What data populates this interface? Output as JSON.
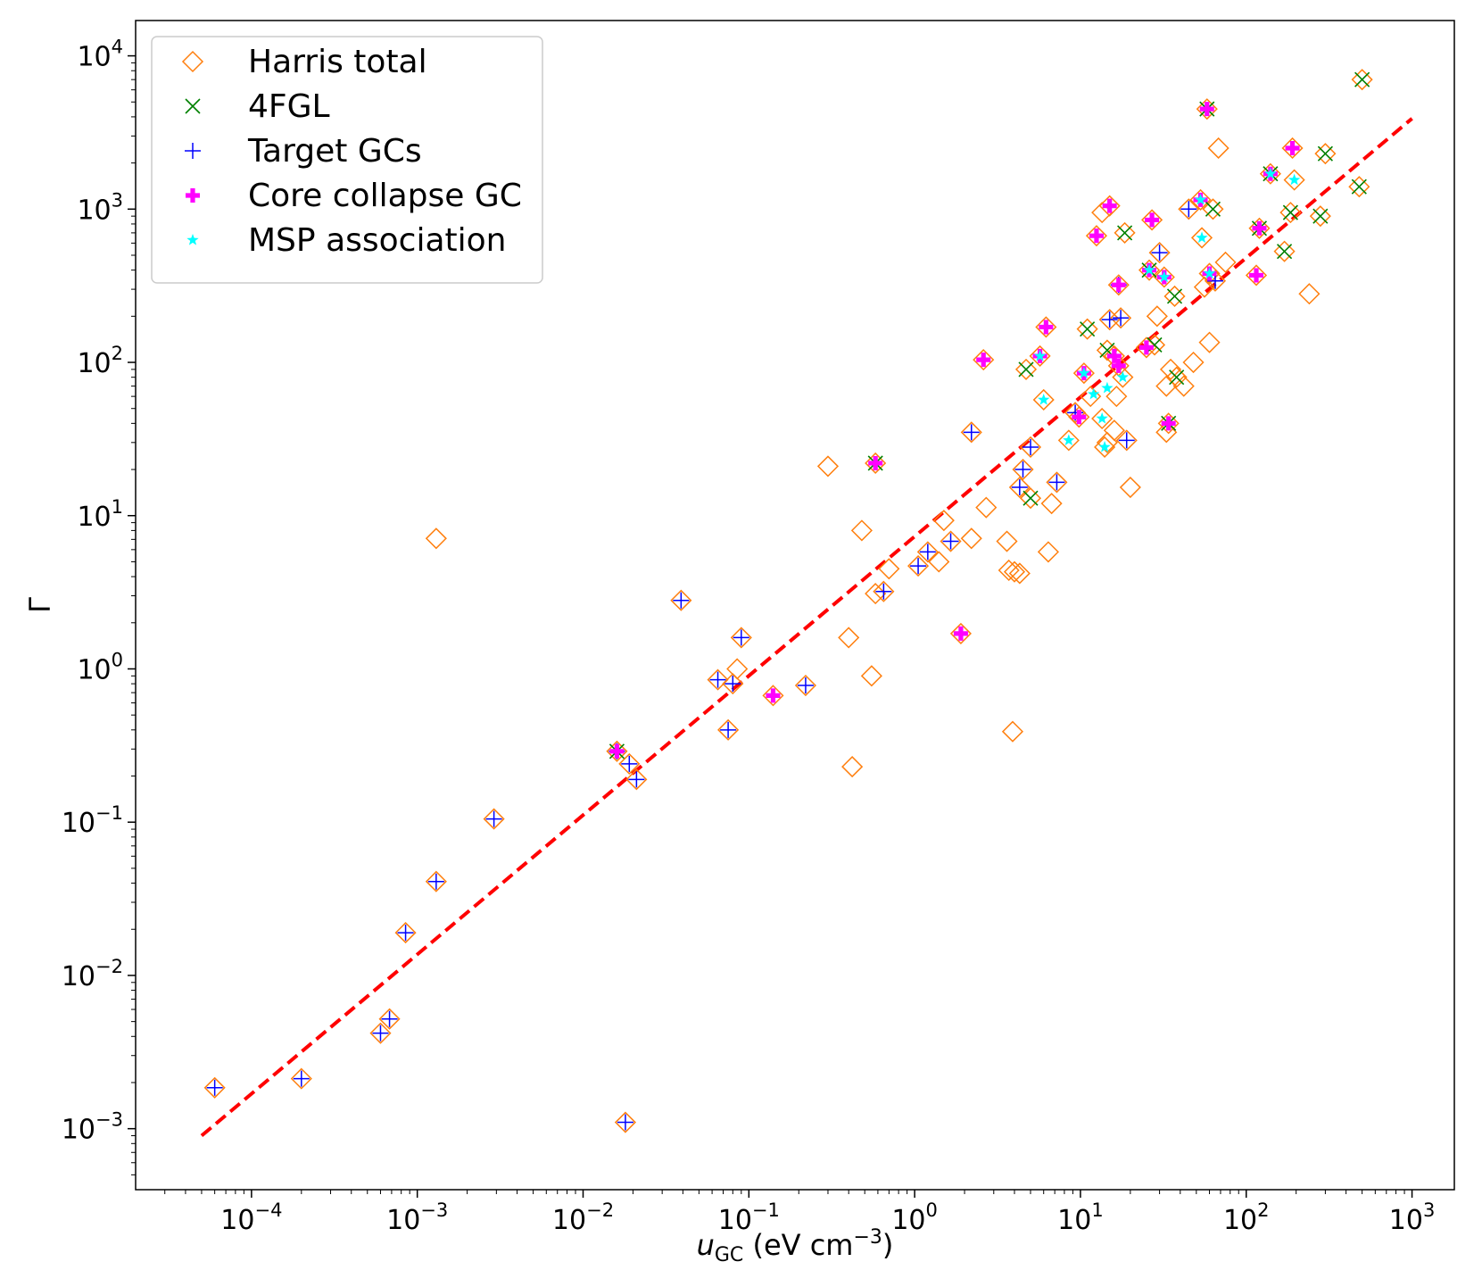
{
  "chart_data": {
    "type": "scatter",
    "title": "",
    "xlabel": "u_GC (eV cm^-3)",
    "xlabel_parts": {
      "sym": "u",
      "sub": "GC",
      "unit_open": " (eV cm",
      "unit_sup": "−3",
      "unit_close": ")"
    },
    "ylabel": "Γ",
    "xscale": "log",
    "yscale": "log",
    "xlim": [
      2e-05,
      1800
    ],
    "ylim": [
      0.0004,
      17000.0
    ],
    "x_ticks": [
      {
        "base": "10",
        "exp": "−4",
        "value": 0.0001
      },
      {
        "base": "10",
        "exp": "−3",
        "value": 0.001
      },
      {
        "base": "10",
        "exp": "−2",
        "value": 0.01
      },
      {
        "base": "10",
        "exp": "−1",
        "value": 0.1
      },
      {
        "base": "10",
        "exp": "0",
        "value": 1
      },
      {
        "base": "10",
        "exp": "1",
        "value": 10
      },
      {
        "base": "10",
        "exp": "2",
        "value": 100
      },
      {
        "base": "10",
        "exp": "3",
        "value": 1000
      }
    ],
    "y_ticks": [
      {
        "base": "10",
        "exp": "−3",
        "value": 0.001
      },
      {
        "base": "10",
        "exp": "−2",
        "value": 0.01
      },
      {
        "base": "10",
        "exp": "−1",
        "value": 0.1
      },
      {
        "base": "10",
        "exp": "0",
        "value": 1
      },
      {
        "base": "10",
        "exp": "1",
        "value": 10
      },
      {
        "base": "10",
        "exp": "2",
        "value": 100
      },
      {
        "base": "10",
        "exp": "3",
        "value": 1000
      },
      {
        "base": "10",
        "exp": "4",
        "value": 10000
      }
    ],
    "legend": {
      "position": "top-left",
      "entries": [
        {
          "label": "Harris total",
          "marker": "diamond",
          "color": "#ff7f0e"
        },
        {
          "label": "4FGL",
          "marker": "x",
          "color": "#008000"
        },
        {
          "label": "Target GCs",
          "marker": "plus",
          "color": "#0000ff"
        },
        {
          "label": "Core collapse GC",
          "marker": "thick-plus",
          "color": "#ff00ff"
        },
        {
          "label": "MSP association",
          "marker": "star",
          "color": "#00ffff"
        }
      ]
    },
    "fit_line": {
      "color": "#ff0000",
      "style": "dashed",
      "points": [
        [
          5e-05,
          0.0009
        ],
        [
          1000,
          3900
        ]
      ]
    },
    "series": [
      {
        "name": "Harris total",
        "marker": "diamond",
        "color": "#ff7f0e",
        "points": [
          [
            6e-05,
            0.00185
          ],
          [
            0.0002,
            0.00212
          ],
          [
            0.0006,
            0.0042
          ],
          [
            0.00068,
            0.0052
          ],
          [
            0.00085,
            0.019
          ],
          [
            0.0013,
            0.041
          ],
          [
            0.0029,
            0.105
          ],
          [
            0.0013,
            7.1
          ],
          [
            0.016,
            0.29
          ],
          [
            0.018,
            0.0011
          ],
          [
            0.019,
            0.24
          ],
          [
            0.021,
            0.19
          ],
          [
            0.039,
            2.8
          ],
          [
            0.065,
            0.85
          ],
          [
            0.075,
            0.4
          ],
          [
            0.08,
            0.8
          ],
          [
            0.085,
            1.0
          ],
          [
            0.09,
            1.6
          ],
          [
            0.14,
            0.67
          ],
          [
            0.22,
            0.78
          ],
          [
            0.3,
            21
          ],
          [
            0.4,
            1.6
          ],
          [
            0.42,
            0.23
          ],
          [
            0.48,
            8.0
          ],
          [
            0.55,
            0.9
          ],
          [
            0.58,
            22
          ],
          [
            0.58,
            3.1
          ],
          [
            0.65,
            3.2
          ],
          [
            0.7,
            4.5
          ],
          [
            1.05,
            4.7
          ],
          [
            1.2,
            5.8
          ],
          [
            1.4,
            5.0
          ],
          [
            1.5,
            9.3
          ],
          [
            1.65,
            6.8
          ],
          [
            1.9,
            1.7
          ],
          [
            2.2,
            7.1
          ],
          [
            2.2,
            35
          ],
          [
            2.6,
            104
          ],
          [
            2.7,
            11.3
          ],
          [
            3.6,
            6.8
          ],
          [
            3.7,
            4.4
          ],
          [
            3.9,
            0.39
          ],
          [
            4.0,
            4.3
          ],
          [
            4.3,
            4.2
          ],
          [
            4.3,
            15.3
          ],
          [
            4.5,
            20
          ],
          [
            4.7,
            90
          ],
          [
            5.0,
            28
          ],
          [
            5.0,
            13
          ],
          [
            5.7,
            110
          ],
          [
            6.0,
            57
          ],
          [
            6.2,
            170
          ],
          [
            6.4,
            5.8
          ],
          [
            6.7,
            12
          ],
          [
            7.2,
            16.5
          ],
          [
            8.5,
            31
          ],
          [
            9.3,
            47
          ],
          [
            9.8,
            44
          ],
          [
            10.5,
            85
          ],
          [
            11,
            165
          ],
          [
            11.5,
            60
          ],
          [
            12.5,
            670
          ],
          [
            13.5,
            950
          ],
          [
            13.5,
            43
          ],
          [
            14,
            28
          ],
          [
            14.5,
            30
          ],
          [
            14.5,
            120
          ],
          [
            15,
            1050
          ],
          [
            15,
            190
          ],
          [
            16,
            110
          ],
          [
            16,
            36
          ],
          [
            16.5,
            60
          ],
          [
            17,
            95
          ],
          [
            17,
            320
          ],
          [
            17.5,
            195
          ],
          [
            18,
            80
          ],
          [
            18.5,
            700
          ],
          [
            19,
            31
          ],
          [
            20,
            15.3
          ],
          [
            25,
            125
          ],
          [
            26,
            400
          ],
          [
            27,
            850
          ],
          [
            28,
            130
          ],
          [
            29,
            200
          ],
          [
            30,
            520
          ],
          [
            32,
            360
          ],
          [
            33,
            35
          ],
          [
            33,
            70
          ],
          [
            34,
            40
          ],
          [
            35,
            90
          ],
          [
            37,
            270
          ],
          [
            38,
            80
          ],
          [
            42,
            70
          ],
          [
            45,
            1000
          ],
          [
            48,
            100
          ],
          [
            53,
            1150
          ],
          [
            54,
            650
          ],
          [
            56,
            310
          ],
          [
            58,
            4500
          ],
          [
            60,
            135
          ],
          [
            60,
            380
          ],
          [
            63,
            1000
          ],
          [
            65,
            340
          ],
          [
            68,
            2500
          ],
          [
            75,
            450
          ],
          [
            115,
            370
          ],
          [
            120,
            750
          ],
          [
            140,
            1700
          ],
          [
            170,
            530
          ],
          [
            185,
            950
          ],
          [
            190,
            2500
          ],
          [
            195,
            1550
          ],
          [
            240,
            280
          ],
          [
            280,
            900
          ],
          [
            300,
            2300
          ],
          [
            480,
            1400
          ],
          [
            500,
            7000
          ]
        ]
      },
      {
        "name": "4FGL",
        "marker": "x",
        "color": "#008000",
        "points": [
          [
            0.016,
            0.29
          ],
          [
            0.58,
            22
          ],
          [
            4.7,
            90
          ],
          [
            5.0,
            13
          ],
          [
            11,
            165
          ],
          [
            14.5,
            120
          ],
          [
            18.5,
            700
          ],
          [
            26,
            400
          ],
          [
            28,
            130
          ],
          [
            34,
            40
          ],
          [
            37,
            270
          ],
          [
            38,
            80
          ],
          [
            58,
            4500
          ],
          [
            63,
            1000
          ],
          [
            120,
            750
          ],
          [
            140,
            1700
          ],
          [
            170,
            530
          ],
          [
            185,
            950
          ],
          [
            280,
            900
          ],
          [
            300,
            2300
          ],
          [
            480,
            1400
          ],
          [
            500,
            7000
          ]
        ]
      },
      {
        "name": "Target GCs",
        "marker": "plus",
        "color": "#0000ff",
        "points": [
          [
            6e-05,
            0.00185
          ],
          [
            0.0002,
            0.00212
          ],
          [
            0.0006,
            0.0042
          ],
          [
            0.00068,
            0.0052
          ],
          [
            0.00085,
            0.019
          ],
          [
            0.0013,
            0.041
          ],
          [
            0.0029,
            0.105
          ],
          [
            0.016,
            0.29
          ],
          [
            0.018,
            0.0011
          ],
          [
            0.019,
            0.24
          ],
          [
            0.021,
            0.19
          ],
          [
            0.039,
            2.8
          ],
          [
            0.065,
            0.85
          ],
          [
            0.075,
            0.4
          ],
          [
            0.08,
            0.8
          ],
          [
            0.09,
            1.6
          ],
          [
            0.22,
            0.78
          ],
          [
            0.65,
            3.2
          ],
          [
            1.05,
            4.7
          ],
          [
            1.2,
            5.8
          ],
          [
            1.65,
            6.8
          ],
          [
            2.2,
            35
          ],
          [
            4.3,
            15.3
          ],
          [
            4.5,
            20
          ],
          [
            5.0,
            28
          ],
          [
            7.2,
            16.5
          ],
          [
            9.3,
            47
          ],
          [
            15,
            190
          ],
          [
            17,
            320
          ],
          [
            17.5,
            195
          ],
          [
            19,
            31
          ],
          [
            30,
            520
          ],
          [
            45,
            1000
          ],
          [
            65,
            340
          ]
        ]
      },
      {
        "name": "Core collapse GC",
        "marker": "thick-plus",
        "color": "#ff00ff",
        "points": [
          [
            0.016,
            0.29
          ],
          [
            0.14,
            0.67
          ],
          [
            0.58,
            22
          ],
          [
            1.9,
            1.7
          ],
          [
            2.6,
            104
          ],
          [
            5.7,
            110
          ],
          [
            6.2,
            170
          ],
          [
            9.8,
            44
          ],
          [
            10.5,
            85
          ],
          [
            12.5,
            670
          ],
          [
            15,
            1050
          ],
          [
            16,
            110
          ],
          [
            17,
            95
          ],
          [
            17,
            320
          ],
          [
            25,
            125
          ],
          [
            26,
            400
          ],
          [
            27,
            850
          ],
          [
            32,
            360
          ],
          [
            34,
            40
          ],
          [
            53,
            1150
          ],
          [
            58,
            4500
          ],
          [
            60,
            380
          ],
          [
            115,
            370
          ],
          [
            120,
            750
          ],
          [
            140,
            1700
          ],
          [
            190,
            2500
          ]
        ]
      },
      {
        "name": "MSP association",
        "marker": "star",
        "color": "#00ffff",
        "points": [
          [
            5.7,
            110
          ],
          [
            6.0,
            57
          ],
          [
            8.5,
            31
          ],
          [
            10.5,
            85
          ],
          [
            12,
            62
          ],
          [
            13.5,
            43
          ],
          [
            14,
            28
          ],
          [
            14.5,
            68
          ],
          [
            18,
            80
          ],
          [
            26,
            400
          ],
          [
            32,
            360
          ],
          [
            53,
            1150
          ],
          [
            54,
            650
          ],
          [
            60,
            380
          ],
          [
            140,
            1700
          ],
          [
            195,
            1550
          ]
        ]
      }
    ]
  }
}
